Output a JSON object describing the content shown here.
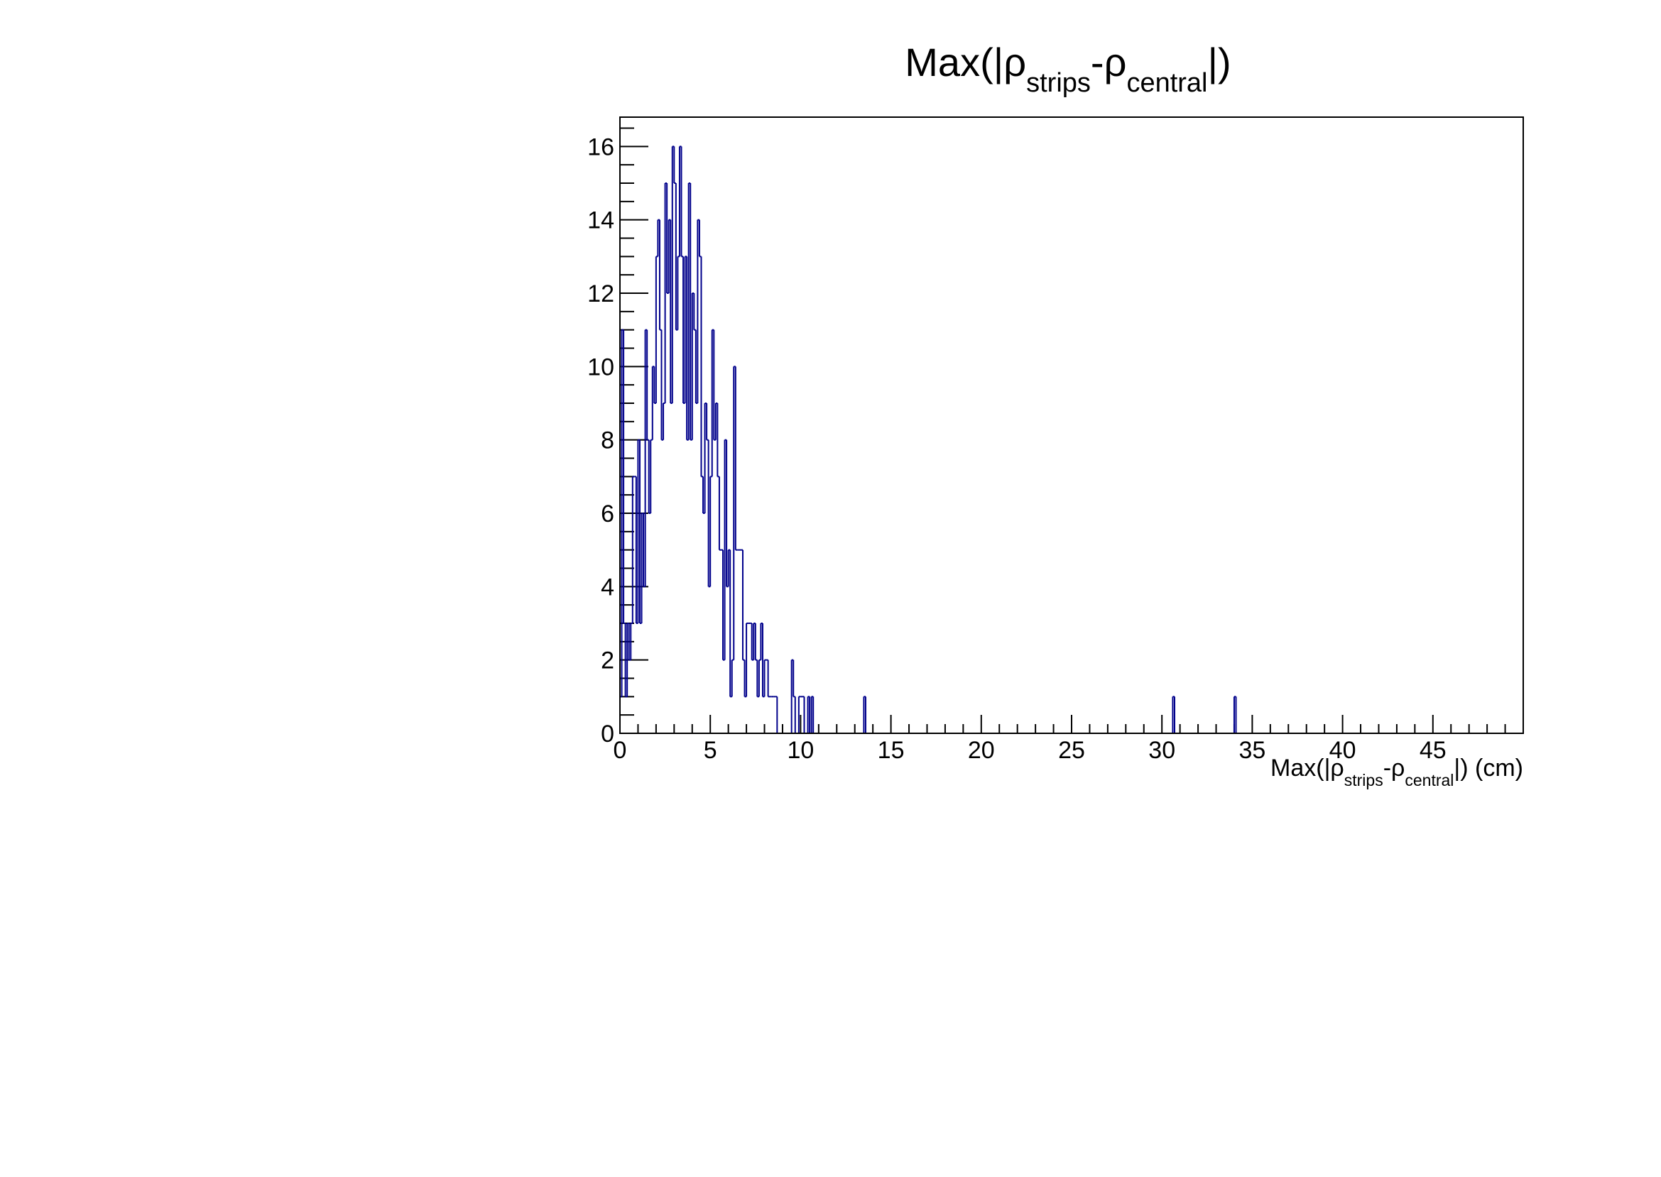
{
  "colors": {
    "histogram_line": "#00008b",
    "axes": "#000000",
    "background": "#ffffff"
  },
  "chart_data": {
    "type": "histogram",
    "title": {
      "prefix": "Max(|ρ",
      "sub1": "strips",
      "mid": "-ρ",
      "sub2": "central",
      "suffix": "|)"
    },
    "xlabel": {
      "prefix": "Max(|ρ",
      "sub1": "strips",
      "mid": "-ρ",
      "sub2": "central",
      "suffix": "|) (cm)"
    },
    "ylabel": "",
    "xlim": [
      0,
      50
    ],
    "ylim": [
      0,
      16.8
    ],
    "bin_width": 0.1,
    "x_ticks": [
      "0",
      "5",
      "10",
      "15",
      "20",
      "25",
      "30",
      "35",
      "40",
      "45"
    ],
    "y_ticks": [
      "0",
      "2",
      "4",
      "6",
      "8",
      "10",
      "12",
      "14",
      "16"
    ],
    "grid": false,
    "legend": "none",
    "bins": [
      [
        0.0,
        1
      ],
      [
        0.1,
        11
      ],
      [
        0.2,
        3
      ],
      [
        0.3,
        1
      ],
      [
        0.4,
        3
      ],
      [
        0.5,
        2
      ],
      [
        0.6,
        3
      ],
      [
        0.7,
        7
      ],
      [
        0.8,
        7
      ],
      [
        0.9,
        3
      ],
      [
        1.0,
        8
      ],
      [
        1.1,
        3
      ],
      [
        1.2,
        6
      ],
      [
        1.3,
        4
      ],
      [
        1.4,
        11
      ],
      [
        1.5,
        8
      ],
      [
        1.6,
        6
      ],
      [
        1.7,
        8
      ],
      [
        1.8,
        10
      ],
      [
        1.9,
        9
      ],
      [
        2.0,
        13
      ],
      [
        2.1,
        14
      ],
      [
        2.2,
        11
      ],
      [
        2.3,
        8
      ],
      [
        2.4,
        9
      ],
      [
        2.5,
        15
      ],
      [
        2.6,
        12
      ],
      [
        2.7,
        14
      ],
      [
        2.8,
        9
      ],
      [
        2.9,
        16
      ],
      [
        3.0,
        15
      ],
      [
        3.1,
        11
      ],
      [
        3.2,
        13
      ],
      [
        3.3,
        16
      ],
      [
        3.4,
        13
      ],
      [
        3.5,
        9
      ],
      [
        3.6,
        13
      ],
      [
        3.7,
        8
      ],
      [
        3.8,
        15
      ],
      [
        3.9,
        8
      ],
      [
        4.0,
        12
      ],
      [
        4.1,
        11
      ],
      [
        4.2,
        9
      ],
      [
        4.3,
        14
      ],
      [
        4.4,
        13
      ],
      [
        4.5,
        7
      ],
      [
        4.6,
        6
      ],
      [
        4.7,
        9
      ],
      [
        4.8,
        8
      ],
      [
        4.9,
        4
      ],
      [
        5.0,
        7
      ],
      [
        5.1,
        11
      ],
      [
        5.2,
        8
      ],
      [
        5.3,
        9
      ],
      [
        5.4,
        7
      ],
      [
        5.5,
        5
      ],
      [
        5.6,
        5
      ],
      [
        5.7,
        2
      ],
      [
        5.8,
        8
      ],
      [
        5.9,
        4
      ],
      [
        6.0,
        5
      ],
      [
        6.1,
        1
      ],
      [
        6.2,
        2
      ],
      [
        6.3,
        10
      ],
      [
        6.4,
        5
      ],
      [
        6.5,
        5
      ],
      [
        6.6,
        5
      ],
      [
        6.7,
        5
      ],
      [
        6.8,
        2
      ],
      [
        6.9,
        1
      ],
      [
        7.0,
        3
      ],
      [
        7.1,
        3
      ],
      [
        7.2,
        3
      ],
      [
        7.3,
        2
      ],
      [
        7.4,
        3
      ],
      [
        7.5,
        2
      ],
      [
        7.6,
        1
      ],
      [
        7.7,
        2
      ],
      [
        7.8,
        3
      ],
      [
        7.9,
        1
      ],
      [
        8.0,
        2
      ],
      [
        8.1,
        2
      ],
      [
        8.2,
        1
      ],
      [
        8.3,
        1
      ],
      [
        8.4,
        1
      ],
      [
        8.5,
        1
      ],
      [
        8.6,
        1
      ],
      [
        9.5,
        2
      ],
      [
        9.6,
        1
      ],
      [
        9.9,
        1
      ],
      [
        10.0,
        1
      ],
      [
        10.1,
        1
      ],
      [
        10.4,
        1
      ],
      [
        10.6,
        1
      ],
      [
        13.5,
        1
      ],
      [
        30.6,
        1
      ],
      [
        34.0,
        1
      ]
    ]
  }
}
